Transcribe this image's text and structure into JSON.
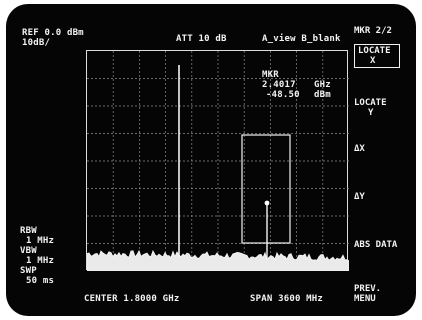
{
  "header": {
    "ref_level": "REF 0.0 dBm",
    "scale": "10dB/",
    "attenuation": "ATT 10 dB",
    "trace_mode": "A_view B_blank"
  },
  "marker": {
    "label": "MKR",
    "frequency": "2.4017",
    "frequency_unit": "GHz",
    "level": "-48.50",
    "level_unit": "dBm"
  },
  "left_panel": {
    "rbw_label": "RBW",
    "rbw_value": "1 MHz",
    "vbw_label": "VBW",
    "vbw_value": "1 MHz",
    "swp_label": "SWP",
    "swp_value": "50 ms"
  },
  "footer": {
    "center": "CENTER 1.8000 GHz",
    "span": "SPAN 3600 MHz"
  },
  "softkeys": {
    "menu_title": "MKR 2/2",
    "locate_x": [
      "LOCATE",
      "X"
    ],
    "locate_y": [
      "LOCATE",
      "Y"
    ],
    "delta_x": "ΔX",
    "delta_y": "ΔY",
    "abs_data": "ABS DATA",
    "prev_menu": [
      "PREV.",
      "MENU"
    ]
  },
  "colors": {
    "background": "#050505",
    "trace": "#f2f2f2"
  }
}
